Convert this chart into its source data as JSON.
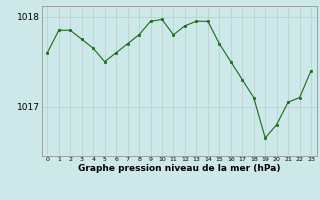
{
  "hours": [
    0,
    1,
    2,
    3,
    4,
    5,
    6,
    7,
    8,
    9,
    10,
    11,
    12,
    13,
    14,
    15,
    16,
    17,
    18,
    19,
    20,
    21,
    22,
    23
  ],
  "pressure": [
    1017.6,
    1017.85,
    1017.85,
    1017.75,
    1017.65,
    1017.5,
    1017.6,
    1017.7,
    1017.8,
    1017.95,
    1017.97,
    1017.8,
    1017.9,
    1017.95,
    1017.95,
    1017.7,
    1017.5,
    1017.3,
    1017.1,
    1016.65,
    1016.8,
    1017.05,
    1017.1,
    1017.4
  ],
  "ylim": [
    1016.45,
    1018.12
  ],
  "yticks": [
    1017.0,
    1018.0
  ],
  "ytick_labels": [
    "1017",
    "1018"
  ],
  "bg_color": "#cce8e8",
  "grid_color": "#bbcccc",
  "line_color": "#1a6b1a",
  "marker_color": "#1a6b1a",
  "xlabel": "Graphe pression niveau de la mer (hPa)",
  "figsize": [
    3.2,
    2.0
  ],
  "dpi": 100
}
